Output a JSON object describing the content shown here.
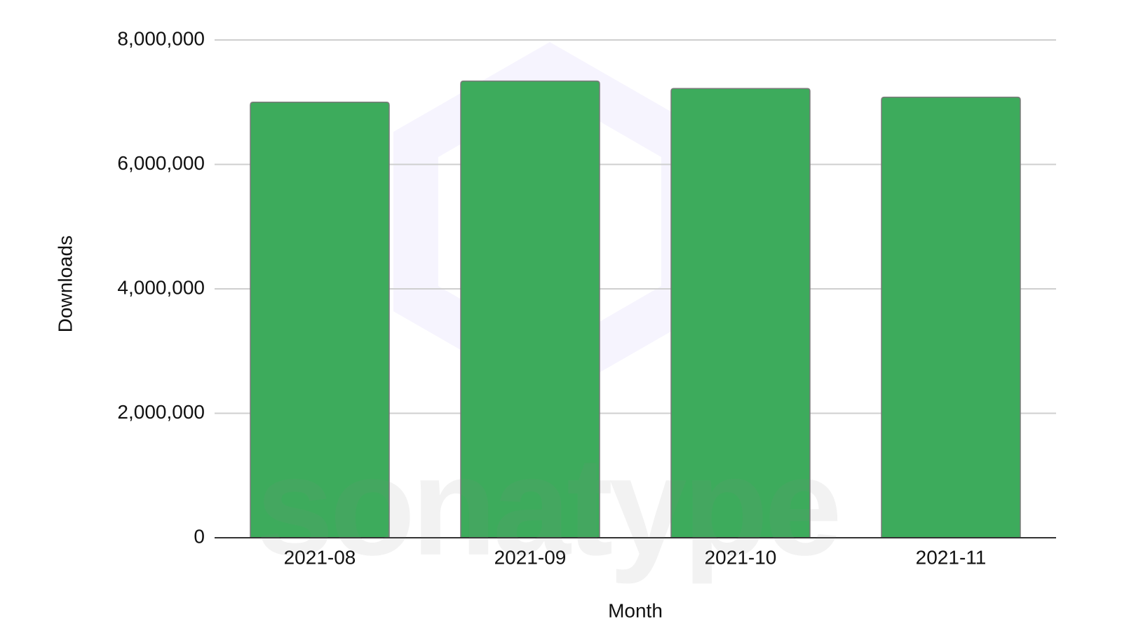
{
  "chart_data": {
    "type": "bar",
    "x_label": "Month",
    "y_label": "Downloads",
    "watermark": "sonatype",
    "categories": [
      "2021-08",
      "2021-09",
      "2021-10",
      "2021-11"
    ],
    "values": [
      7000000,
      7340000,
      7220000,
      7080000
    ],
    "color": "#3dab5c",
    "ylim": [
      0,
      8000000
    ],
    "yticks": [
      {
        "value": 0,
        "label": "0"
      },
      {
        "value": 2000000,
        "label": "2,000,000"
      },
      {
        "value": 4000000,
        "label": "4,000,000"
      },
      {
        "value": 6000000,
        "label": "6,000,000"
      },
      {
        "value": 8000000,
        "label": "8,000,000"
      }
    ],
    "grid": true
  }
}
